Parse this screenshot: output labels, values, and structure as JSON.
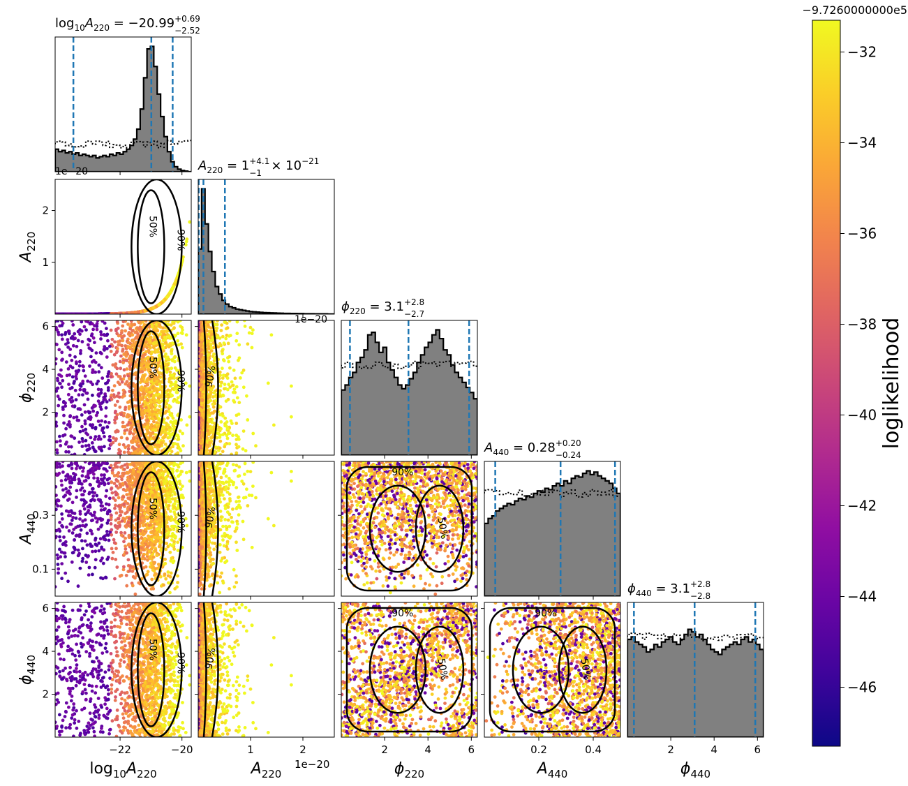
{
  "chart_data": {
    "type": "corner",
    "parameters": [
      {
        "label": "log10A220",
        "title": {
          "name": "log",
          "sub": "10",
          "name2": "A",
          "sub2": "220",
          "value": "−20.99",
          "sup": "+0.69",
          "inf": "−2.52"
        },
        "range": [
          -24.1,
          -19.7
        ],
        "ticks": [
          -22,
          -20
        ],
        "tick_labels": [
          "−22",
          "−20"
        ],
        "median": -20.99,
        "lower": -23.51,
        "upper": -20.3,
        "offset": ""
      },
      {
        "label": "A220",
        "title": {
          "name": "A",
          "sub": "220",
          "value": "1",
          "sup": "+4.1",
          "inf": "−1",
          "extra": " × 10",
          "extra_sup": "−21"
        },
        "range": [
          0,
          2.6
        ],
        "ticks": [
          1,
          2
        ],
        "tick_labels": [
          "1",
          "2"
        ],
        "median": 0.1,
        "lower": 0.01,
        "upper": 0.51,
        "offset": "1e−20"
      },
      {
        "label": "phi220",
        "title": {
          "name": "ϕ",
          "sub": "220",
          "value": "3.1",
          "sup": "+2.8",
          "inf": "−2.7"
        },
        "range": [
          0,
          6.28
        ],
        "ticks": [
          2,
          4,
          6
        ],
        "tick_labels": [
          "2",
          "4",
          "6"
        ],
        "median": 3.1,
        "lower": 0.4,
        "upper": 5.9,
        "offset": ""
      },
      {
        "label": "A440",
        "title": {
          "name": "A",
          "sub": "440",
          "value": "0.28",
          "sup": "+0.20",
          "inf": "−0.24"
        },
        "range": [
          0,
          0.5
        ],
        "ticks": [
          0.1,
          0.3
        ],
        "tick_labels": [
          "0.1",
          "0.3"
        ],
        "x_ticks": [
          0.2,
          0.4
        ],
        "x_tick_labels": [
          "0.2",
          "0.4"
        ],
        "median": 0.28,
        "lower": 0.04,
        "upper": 0.48,
        "offset": ""
      },
      {
        "label": "phi440",
        "title": {
          "name": "ϕ",
          "sub": "440",
          "value": "3.1",
          "sup": "+2.8",
          "inf": "−2.8"
        },
        "range": [
          0,
          6.28
        ],
        "ticks": [
          2,
          4,
          6
        ],
        "tick_labels": [
          "2",
          "4",
          "6"
        ],
        "median": 3.1,
        "lower": 0.3,
        "upper": 5.9,
        "offset": ""
      }
    ],
    "histograms": {
      "log10A220": [
        0.18,
        0.16,
        0.17,
        0.15,
        0.16,
        0.14,
        0.15,
        0.13,
        0.14,
        0.13,
        0.12,
        0.13,
        0.11,
        0.12,
        0.13,
        0.12,
        0.14,
        0.13,
        0.15,
        0.14,
        0.16,
        0.18,
        0.21,
        0.26,
        0.34,
        0.5,
        0.75,
        0.98,
        1.0,
        0.84,
        0.62,
        0.44,
        0.28,
        0.16,
        0.08,
        0.04,
        0.02,
        0.01,
        0.005,
        0.0
      ],
      "A220": [
        0.52,
        1.0,
        0.72,
        0.5,
        0.34,
        0.22,
        0.16,
        0.11,
        0.08,
        0.06,
        0.05,
        0.04,
        0.035,
        0.03,
        0.025,
        0.02,
        0.018,
        0.016,
        0.014,
        0.012,
        0.011,
        0.01,
        0.009,
        0.008,
        0.007,
        0.006,
        0.006,
        0.005,
        0.005,
        0.004,
        0.004,
        0.003,
        0.003,
        0.003,
        0.002,
        0.002,
        0.002,
        0.002,
        0.001,
        0.001
      ],
      "phi220": [
        0.52,
        0.56,
        0.62,
        0.66,
        0.74,
        0.78,
        0.84,
        0.96,
        0.98,
        0.9,
        0.82,
        0.86,
        0.74,
        0.68,
        0.62,
        0.56,
        0.53,
        0.56,
        0.61,
        0.66,
        0.74,
        0.8,
        0.86,
        0.9,
        0.96,
        1.0,
        0.93,
        0.84,
        0.8,
        0.72,
        0.66,
        0.62,
        0.58,
        0.54,
        0.5,
        0.45
      ],
      "A440": [
        0.58,
        0.62,
        0.64,
        0.68,
        0.7,
        0.72,
        0.74,
        0.73,
        0.76,
        0.78,
        0.77,
        0.8,
        0.79,
        0.82,
        0.84,
        0.83,
        0.86,
        0.85,
        0.88,
        0.9,
        0.88,
        0.92,
        0.9,
        0.94,
        0.96,
        0.95,
        0.98,
        1.0,
        0.97,
        0.99,
        0.96,
        0.94,
        0.92,
        0.9,
        0.86,
        0.82
      ],
      "phi440": [
        0.78,
        0.8,
        0.76,
        0.74,
        0.72,
        0.68,
        0.7,
        0.74,
        0.72,
        0.76,
        0.78,
        0.8,
        0.76,
        0.74,
        0.78,
        0.82,
        0.86,
        0.84,
        0.8,
        0.82,
        0.78,
        0.74,
        0.7,
        0.68,
        0.66,
        0.7,
        0.72,
        0.74,
        0.76,
        0.74,
        0.78,
        0.8,
        0.76,
        0.78,
        0.74,
        0.7
      ]
    },
    "prior_level": {
      "log10A220": 0.22,
      "A220": 0.0,
      "phi220": 0.72,
      "A440": 0.82,
      "phi440": 0.8
    },
    "contour_levels": [
      "50%",
      "90%"
    ],
    "scatter_colored_by": "loglikelihood",
    "colorbar": {
      "label": "loglikelihood",
      "offset_text": "−9.7260000000e5",
      "range": [
        -47.3,
        -31.3
      ],
      "ticks": [
        -32,
        -34,
        -36,
        -38,
        -40,
        -42,
        -44,
        -46
      ],
      "tick_labels": [
        "−32",
        "−34",
        "−36",
        "−38",
        "−40",
        "−42",
        "−44",
        "−46"
      ],
      "colormap": "plasma"
    }
  }
}
